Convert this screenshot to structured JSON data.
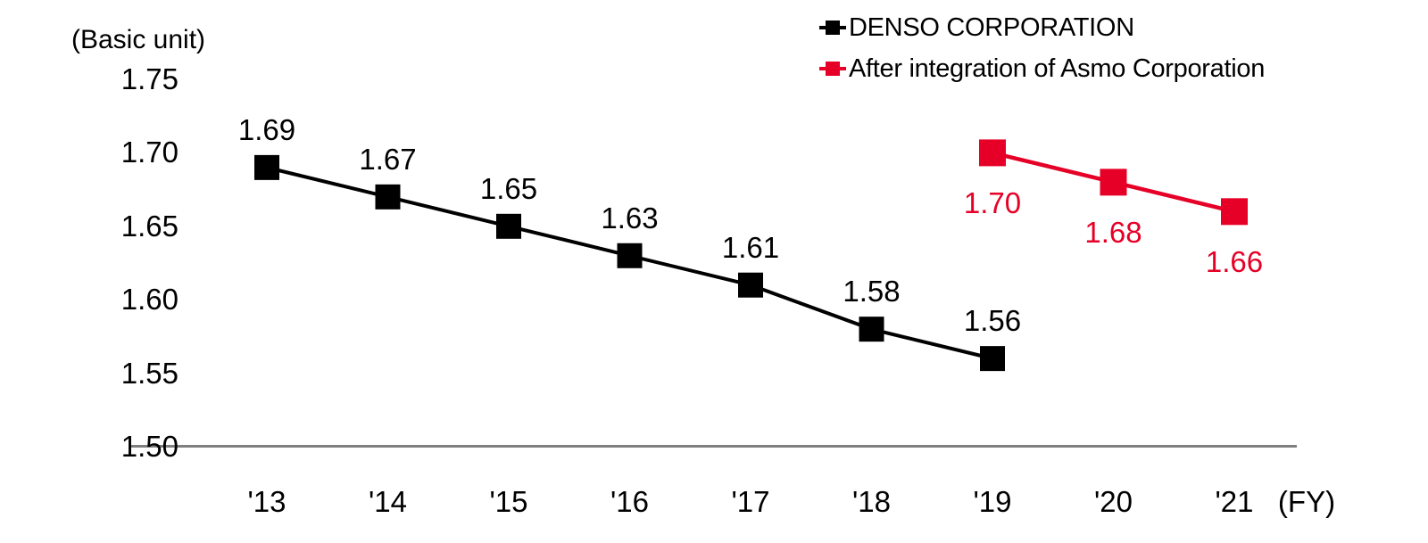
{
  "chart_data": {
    "type": "line",
    "title": "",
    "unit_label": "(Basic unit)",
    "x_axis_suffix_label": "(FY)",
    "categories": [
      "'13",
      "'14",
      "'15",
      "'16",
      "'17",
      "'18",
      "'19",
      "'20",
      "'21"
    ],
    "series": [
      {
        "name": "DENSO CORPORATION",
        "color": "#000000",
        "marker": "square",
        "start_index": 0,
        "values": [
          1.69,
          1.67,
          1.65,
          1.63,
          1.61,
          1.58,
          1.56
        ],
        "value_labels": [
          "1.69",
          "1.67",
          "1.65",
          "1.63",
          "1.61",
          "1.58",
          "1.56"
        ],
        "label_position": "above"
      },
      {
        "name": "After integration of Asmo Corporation",
        "color": "#E60027",
        "marker": "square",
        "start_index": 6,
        "values": [
          1.7,
          1.68,
          1.66
        ],
        "value_labels": [
          "1.70",
          "1.68",
          "1.66"
        ],
        "label_position": "below"
      }
    ],
    "y_axis": {
      "min": 1.5,
      "max": 1.75,
      "tick_step": 0.05,
      "tick_labels": [
        "1.75",
        "1.70",
        "1.65",
        "1.60",
        "1.55",
        "1.50"
      ]
    },
    "ylim": [
      1.5,
      1.75
    ],
    "axis_line_color": "#7F7F7F",
    "grid": false,
    "legend_position": "top-right"
  }
}
